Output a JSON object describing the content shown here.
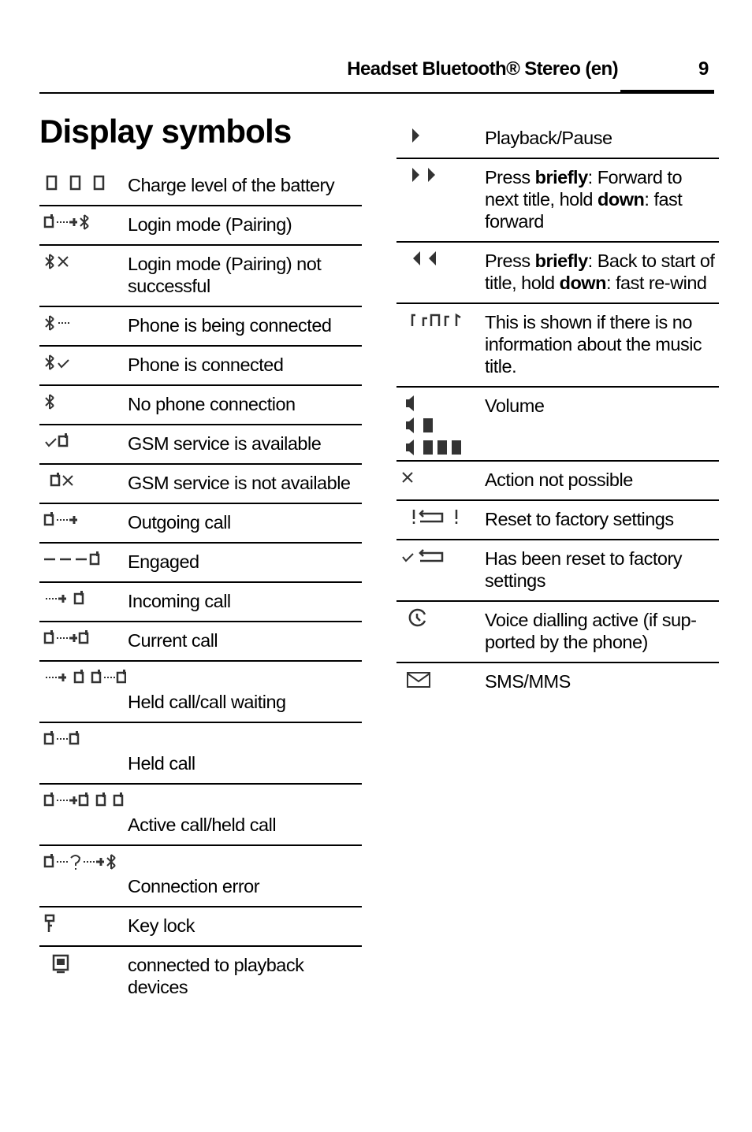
{
  "header": {
    "title": "Headset Bluetooth® Stereo (en)",
    "page": "9"
  },
  "section_title": "Display symbols",
  "left_table": {
    "rows": [
      [
        "Charge level of the battery"
      ],
      [
        "Login mode (Pairing)"
      ],
      [
        "Login mode (Pairing) not successful"
      ],
      [
        "Phone is being connected"
      ],
      [
        "Phone is connected"
      ],
      [
        "No phone connection"
      ],
      [
        "GSM service is available"
      ],
      [
        "GSM service is not available"
      ],
      [
        "Outgoing call"
      ],
      [
        "Engaged"
      ],
      [
        "Incoming call"
      ],
      [
        "Current call"
      ],
      [
        "Held call/call waiting"
      ],
      [
        "Held call"
      ],
      [
        "Active call/held call"
      ],
      [
        "Connection error"
      ],
      [
        "Key lock"
      ],
      [
        "connected to playback devices"
      ]
    ]
  },
  "right_table": {
    "rows": [
      [
        "Playback/Pause"
      ],
      [
        "Press ",
        "briefly",
        ": Forward to next title, hold ",
        "down",
        ": fast forward"
      ],
      [
        "Press ",
        "briefly",
        ": Back to start of title, hold ",
        "down",
        ": fast re-wind"
      ],
      [
        "This is shown if there is no information about the music title."
      ],
      [
        "Volume"
      ],
      [
        "Action not possible"
      ],
      [
        "Reset to factory settings"
      ],
      [
        "Has been reset to factory settings"
      ],
      [
        "Voice dialling active (if sup-ported by the phone)"
      ],
      [
        "SMS/MMS"
      ]
    ]
  }
}
